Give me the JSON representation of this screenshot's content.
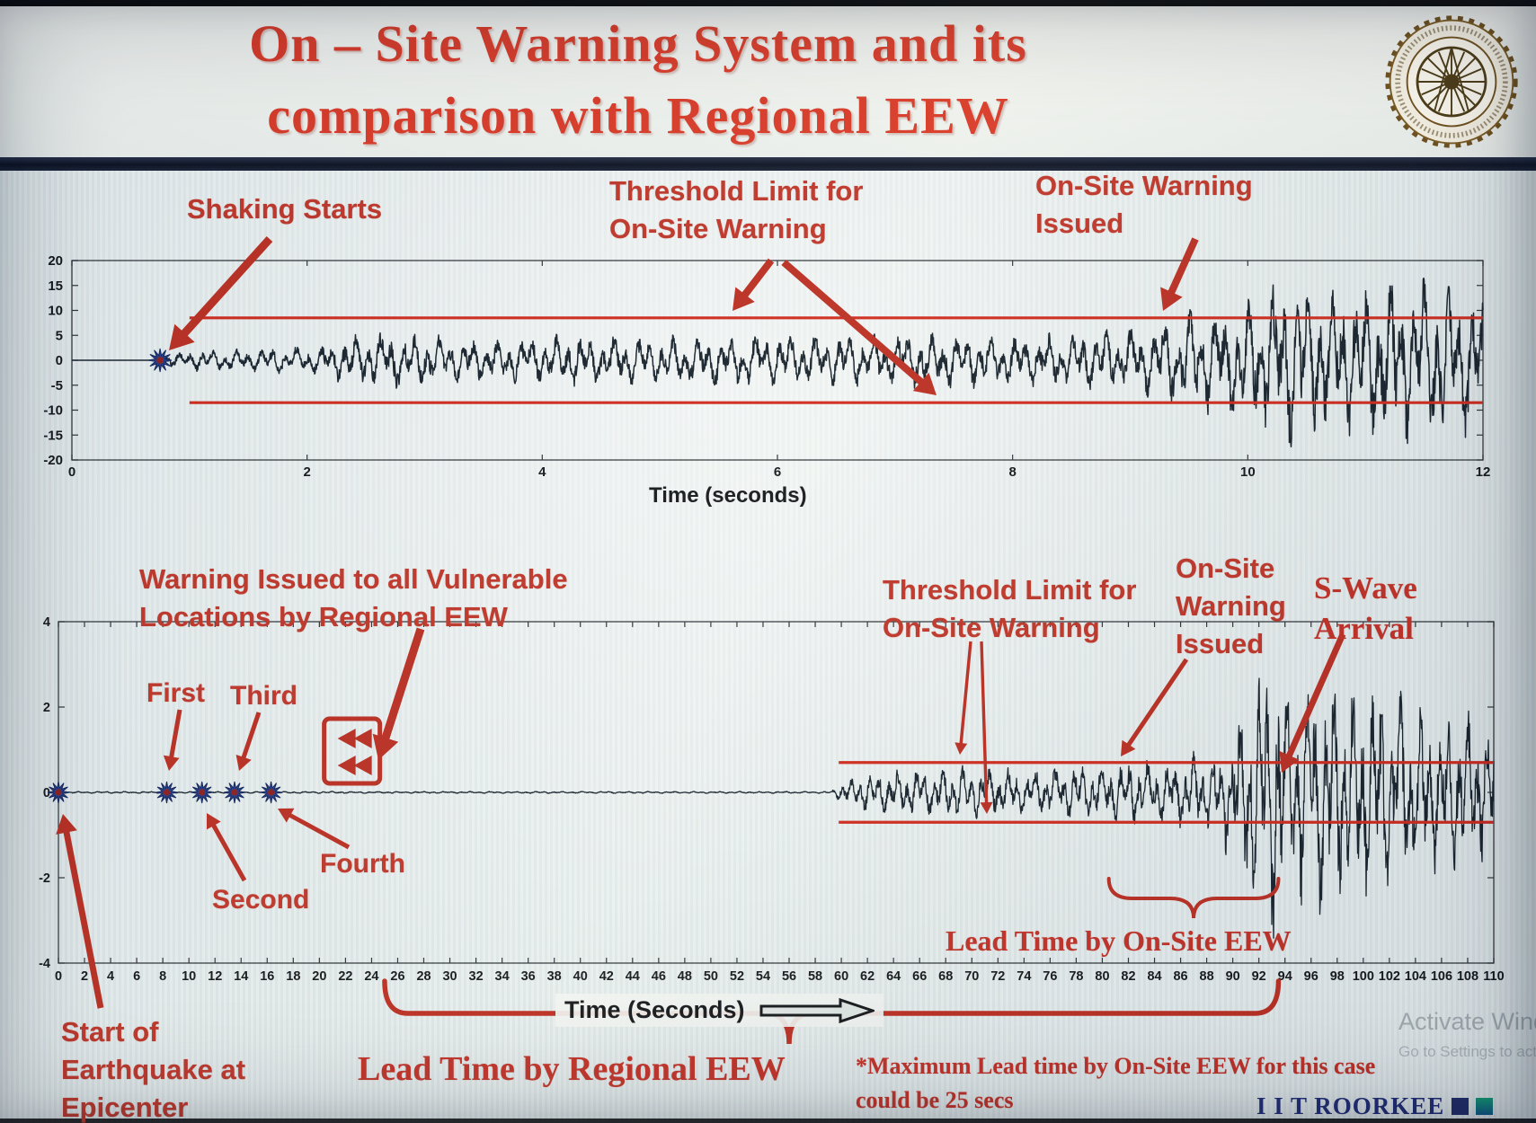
{
  "header": {
    "title_line1": "On – Site Warning System and its",
    "title_line2": "comparison with Regional EEW"
  },
  "icons": {
    "logo": "iit-roorkee-seal",
    "time_axis_arrow": "right-block-arrow",
    "regional_warning_symbol": "red-box-rewind-arrows",
    "trigger_marker": "blue-star"
  },
  "top_chart": {
    "xlabel": "Time (seconds)",
    "annotations": {
      "shaking_starts": "Shaking Starts",
      "threshold": [
        "Threshold Limit for",
        "On-Site Warning"
      ],
      "warning_issued": [
        "On-Site Warning",
        "Issued"
      ]
    }
  },
  "bottom_chart": {
    "xlabel": "Time (Seconds)",
    "annotations": {
      "regional_warning": [
        "Warning Issued to all Vulnerable",
        "Locations by Regional EEW"
      ],
      "first": "First",
      "third": "Third",
      "second": "Second",
      "fourth": "Fourth",
      "threshold": [
        "Threshold Limit for",
        "On-Site Warning"
      ],
      "warning_issued": [
        "On-Site",
        "Warning",
        "Issued"
      ],
      "s_wave": [
        "S-Wave",
        "Arrival"
      ],
      "lead_time_onsite": "Lead Time by On-Site EEW",
      "lead_time_regional": "Lead Time by Regional EEW",
      "max_lead_note": [
        "*Maximum Lead time by On-Site EEW for this case",
        "could be 25 secs"
      ],
      "start_epicenter": [
        "Start of",
        "Earthquake at",
        "Epicenter"
      ]
    }
  },
  "footer": {
    "brand": "I I T ROORKEE",
    "watermark_line1": "Activate Windows",
    "watermark_line2": "Go to Settings to activate"
  },
  "colors": {
    "title_red": "#d93a28",
    "ann_red": "#bf362a",
    "serif_red": "#c23127",
    "threshold_red": "#d02b1e",
    "arrow_red": "#bb2f23",
    "waveform": "#17232e",
    "star_blue": "#24418f",
    "star_core": "#8e2020",
    "brand_navy": "#23307a",
    "watermark_gray": "#98a2a6"
  },
  "chart_data": [
    {
      "id": "onsite-accelerogram",
      "type": "line",
      "title": "",
      "xlabel": "Time (seconds)",
      "ylabel": "",
      "xlim": [
        0,
        12
      ],
      "xticks": [
        0,
        2,
        4,
        6,
        8,
        10,
        12
      ],
      "ylim": [
        -20,
        20
      ],
      "yticks": [
        20,
        15,
        10,
        5,
        0,
        -5,
        -10,
        -15,
        -20
      ],
      "grid": false,
      "legend": "none",
      "threshold_upper": 8.5,
      "threshold_lower": -8.5,
      "threshold_x_range": [
        1.0,
        12
      ],
      "shaking_start_t": 0.75,
      "onsite_warning_issued_t": 9.3,
      "dominant_freq_hz": 10,
      "amplitude_envelope": [
        [
          0,
          0
        ],
        [
          0.72,
          0
        ],
        [
          0.78,
          1.2
        ],
        [
          1.0,
          1.8
        ],
        [
          1.5,
          2.2
        ],
        [
          2.1,
          2.6
        ],
        [
          2.5,
          5.5
        ],
        [
          3.0,
          4.6
        ],
        [
          3.6,
          3.8
        ],
        [
          4.2,
          4.6
        ],
        [
          5.0,
          4.2
        ],
        [
          5.6,
          5.0
        ],
        [
          6.4,
          4.4
        ],
        [
          7.2,
          5.2
        ],
        [
          8.0,
          4.4
        ],
        [
          8.6,
          5.0
        ],
        [
          9.0,
          6.0
        ],
        [
          9.4,
          8.5
        ],
        [
          9.9,
          11.0
        ],
        [
          10.4,
          16.0
        ],
        [
          10.8,
          13.0
        ],
        [
          11.3,
          16.5
        ],
        [
          11.7,
          14.0
        ],
        [
          12,
          12.5
        ]
      ]
    },
    {
      "id": "regional-accelerogram",
      "type": "line",
      "title": "",
      "xlabel": "Time (Seconds)",
      "ylabel": "",
      "xlim": [
        0,
        110
      ],
      "xticks": [
        0,
        2,
        4,
        6,
        8,
        10,
        12,
        14,
        16,
        18,
        20,
        22,
        24,
        26,
        28,
        30,
        32,
        34,
        36,
        38,
        40,
        42,
        44,
        46,
        48,
        50,
        52,
        54,
        56,
        58,
        60,
        62,
        64,
        66,
        68,
        70,
        72,
        74,
        76,
        78,
        80,
        82,
        84,
        86,
        88,
        90,
        92,
        94,
        96,
        98,
        100,
        102,
        104,
        106,
        108,
        110
      ],
      "ylim": [
        -4,
        4
      ],
      "yticks": [
        4,
        2,
        0,
        -2,
        -4
      ],
      "grid": false,
      "legend": "none",
      "threshold_upper": 0.7,
      "threshold_lower": -0.7,
      "threshold_x_range": [
        59.8,
        110
      ],
      "epicenter_t": 0,
      "station_triggers": {
        "first": 8.3,
        "second": 11,
        "third": 13.5,
        "fourth": 16.3
      },
      "regional_warning_t": 22.5,
      "p_wave_onset_t": 60,
      "onsite_warning_issued_t": 80.5,
      "s_wave_arrival_t": 93,
      "lead_time_onsite_range": [
        80.5,
        93.5
      ],
      "lead_time_regional_range": [
        25,
        93.5
      ],
      "max_lead_time_onsite_secs": 25,
      "dominant_freq_hz": 1.4,
      "amplitude_envelope": [
        [
          0,
          0.02
        ],
        [
          59.2,
          0.02
        ],
        [
          60,
          0.22
        ],
        [
          62,
          0.42
        ],
        [
          66,
          0.5
        ],
        [
          70,
          0.55
        ],
        [
          74,
          0.5
        ],
        [
          78,
          0.58
        ],
        [
          82,
          0.66
        ],
        [
          86,
          0.72
        ],
        [
          88.5,
          0.9
        ],
        [
          90,
          1.5
        ],
        [
          91.5,
          2.3
        ],
        [
          93,
          3.1
        ],
        [
          94.5,
          2.5
        ],
        [
          96.5,
          2.8
        ],
        [
          98.5,
          2.3
        ],
        [
          100.5,
          2.5
        ],
        [
          102.5,
          2.1
        ],
        [
          104.5,
          1.9
        ],
        [
          106.5,
          1.7
        ],
        [
          108.5,
          1.55
        ],
        [
          110,
          1.4
        ]
      ]
    }
  ]
}
